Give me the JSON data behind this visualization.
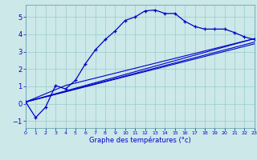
{
  "xlabel": "Graphe des températures (°c)",
  "background_color": "#cce8e8",
  "grid_color": "#99cccc",
  "line_color": "#0000cc",
  "xlim": [
    0,
    23
  ],
  "ylim": [
    -1.4,
    5.7
  ],
  "x_ticks": [
    0,
    1,
    2,
    3,
    4,
    5,
    6,
    7,
    8,
    9,
    10,
    11,
    12,
    13,
    14,
    15,
    16,
    17,
    18,
    19,
    20,
    21,
    22,
    23
  ],
  "y_ticks": [
    -1,
    0,
    1,
    2,
    3,
    4,
    5
  ],
  "main_line_x": [
    0,
    1,
    2,
    3,
    4,
    5,
    6,
    7,
    8,
    9,
    10,
    11,
    12,
    13,
    14,
    15,
    16,
    17,
    18,
    19,
    20,
    21,
    22,
    23
  ],
  "main_line_y": [
    0.1,
    -0.8,
    -0.2,
    1.05,
    0.85,
    1.35,
    2.3,
    3.1,
    3.7,
    4.2,
    4.8,
    5.0,
    5.35,
    5.4,
    5.2,
    5.2,
    4.75,
    4.45,
    4.3,
    4.3,
    4.3,
    4.1,
    3.85,
    3.7
  ],
  "ref_line1_x": [
    0,
    23
  ],
  "ref_line1_y": [
    0.1,
    3.75
  ],
  "ref_line2_x": [
    0,
    23
  ],
  "ref_line2_y": [
    0.1,
    3.45
  ],
  "ref_line3_x": [
    0,
    23
  ],
  "ref_line3_y": [
    0.1,
    3.55
  ],
  "ref_line4_x": [
    0,
    4,
    23
  ],
  "ref_line4_y": [
    0.1,
    1.05,
    3.75
  ]
}
